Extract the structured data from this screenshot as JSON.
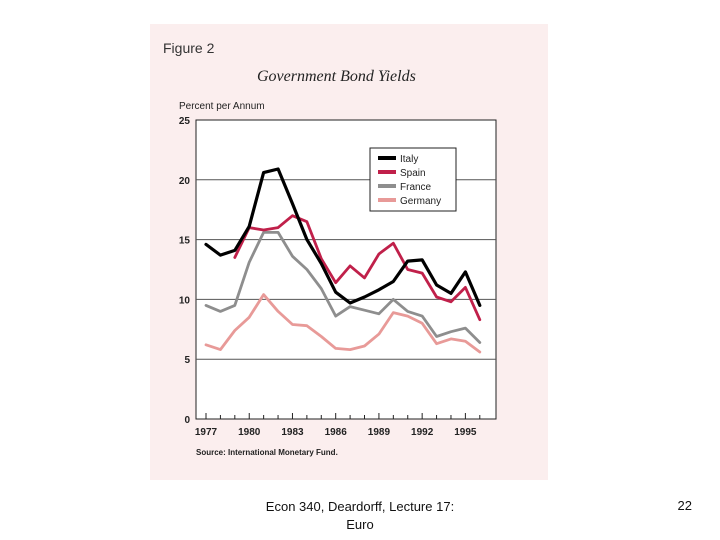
{
  "footer": {
    "line1": "Econ 340, Deardorff, Lecture 17:",
    "line2": "Euro"
  },
  "slide_number": "22",
  "colors": {
    "panel_bg": "#fbeeee",
    "italy": "#000000",
    "spain": "#c0204a",
    "france": "#8e8e8e",
    "germany": "#e89a98"
  },
  "chart_data": {
    "type": "line",
    "figure_label": "Figure 2",
    "title": "Government Bond Yields",
    "ylabel": "Percent per Annum",
    "xlabel": "",
    "source": "Source: International Monetary Fund.",
    "ylim": [
      0,
      25
    ],
    "yticks": [
      0,
      5,
      10,
      15,
      20,
      25
    ],
    "xticks": [
      1977,
      1980,
      1983,
      1986,
      1989,
      1992,
      1995
    ],
    "xlim": [
      1977,
      1996.5
    ],
    "gridlines": [
      5,
      10,
      15,
      20
    ],
    "legend_position": "top-right",
    "series": [
      {
        "name": "Italy",
        "x": [
          1977,
          1978,
          1979,
          1980,
          1981,
          1982,
          1983,
          1984,
          1985,
          1986,
          1987,
          1988,
          1989,
          1990,
          1991,
          1992,
          1993,
          1994,
          1995,
          1996
        ],
        "values": [
          14.6,
          13.7,
          14.1,
          16.1,
          20.6,
          20.9,
          18.0,
          15.0,
          13.0,
          10.6,
          9.7,
          10.2,
          10.8,
          11.5,
          13.2,
          13.3,
          11.2,
          10.5,
          12.3,
          9.5
        ]
      },
      {
        "name": "Spain",
        "x": [
          1979,
          1980,
          1981,
          1982,
          1983,
          1984,
          1985,
          1986,
          1987,
          1988,
          1989,
          1990,
          1991,
          1992,
          1993,
          1994,
          1995,
          1996
        ],
        "values": [
          13.5,
          16.0,
          15.8,
          16.0,
          17.0,
          16.5,
          13.4,
          11.4,
          12.8,
          11.8,
          13.8,
          14.7,
          12.5,
          12.2,
          10.2,
          9.8,
          11.0,
          8.3
        ]
      },
      {
        "name": "France",
        "x": [
          1977,
          1978,
          1979,
          1980,
          1981,
          1982,
          1983,
          1984,
          1985,
          1986,
          1987,
          1988,
          1989,
          1990,
          1991,
          1992,
          1993,
          1994,
          1995,
          1996
        ],
        "values": [
          9.5,
          9.0,
          9.5,
          13.1,
          15.6,
          15.6,
          13.6,
          12.5,
          10.9,
          8.6,
          9.4,
          9.1,
          8.8,
          10.0,
          9.0,
          8.6,
          6.9,
          7.3,
          7.6,
          6.4
        ]
      },
      {
        "name": "Germany",
        "x": [
          1977,
          1978,
          1979,
          1980,
          1981,
          1982,
          1983,
          1984,
          1985,
          1986,
          1987,
          1988,
          1989,
          1990,
          1991,
          1992,
          1993,
          1994,
          1995,
          1996
        ],
        "values": [
          6.2,
          5.8,
          7.4,
          8.5,
          10.4,
          9.0,
          7.9,
          7.8,
          6.9,
          5.9,
          5.8,
          6.1,
          7.1,
          8.9,
          8.6,
          8.0,
          6.3,
          6.7,
          6.5,
          5.6
        ]
      }
    ]
  }
}
